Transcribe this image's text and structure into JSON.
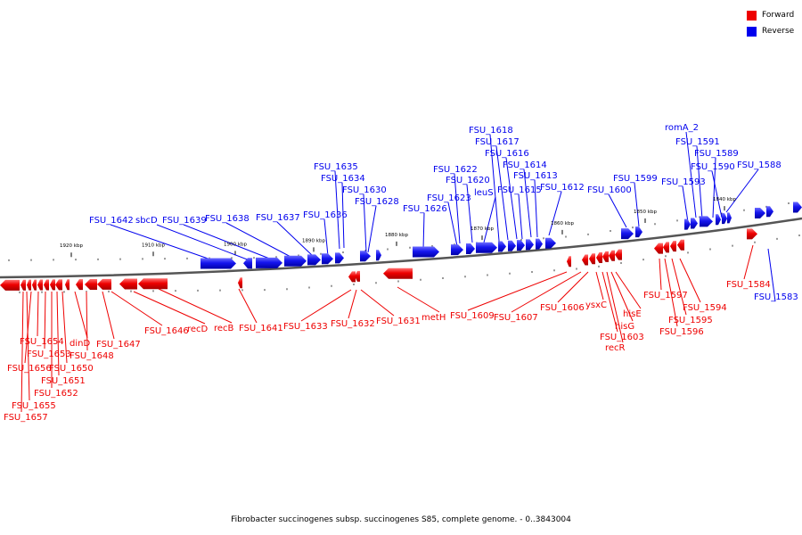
{
  "legend": [
    {
      "label": "Forward",
      "color": "#ee0000"
    },
    {
      "label": "Reverse",
      "color": "#0000ee"
    }
  ],
  "footer": {
    "caption": "Fibrobacter succinogenes subsp. succinogenes S85, complete genome. - 0..3843004"
  },
  "colors": {
    "forward": "#ee0000",
    "reverse": "#0000ee",
    "backbone": "#555555"
  },
  "scale_labels": [
    "1920 kbp",
    "1910 kbp",
    "1900 kbp",
    "1890 kbp",
    "1880 kbp",
    "1870 kbp",
    "1860 kbp",
    "1850 kbp",
    "1840 kbp"
  ],
  "reverse_genes": [
    "FSU_1642",
    "sbcD",
    "FSU_1639",
    "FSU_1638",
    "FSU_1637",
    "FSU_1636",
    "FSU_1635",
    "FSU_1634",
    "FSU_1630",
    "FSU_1628",
    "FSU_1626",
    "FSU_1623",
    "FSU_1622",
    "FSU_1620",
    "leuS",
    "FSU_1618",
    "FSU_1617",
    "FSU_1616",
    "FSU_1615",
    "FSU_1614",
    "FSU_1613",
    "FSU_1612",
    "FSU_1600",
    "FSU_1599",
    "romA_2",
    "FSU_1593",
    "FSU_1591",
    "FSU_1590",
    "FSU_1589",
    "FSU_1588",
    "FSU_1583"
  ],
  "forward_genes": [
    "FSU_1657",
    "FSU_1655",
    "FSU_1656",
    "FSU_1654",
    "FSU_1653",
    "FSU_1652",
    "FSU_1651",
    "FSU_1650",
    "dinD",
    "FSU_1648",
    "FSU_1647",
    "FSU_1646",
    "recD",
    "recB",
    "FSU_1641",
    "FSU_1633",
    "FSU_1632",
    "FSU_1631",
    "metH",
    "FSU_1609",
    "FSU_1607",
    "FSU_1606",
    "ysxC",
    "FSU_1603",
    "recR",
    "hisG",
    "hisE",
    "FSU_1597",
    "FSU_1596",
    "FSU_1595",
    "FSU_1594",
    "FSU_1584"
  ]
}
